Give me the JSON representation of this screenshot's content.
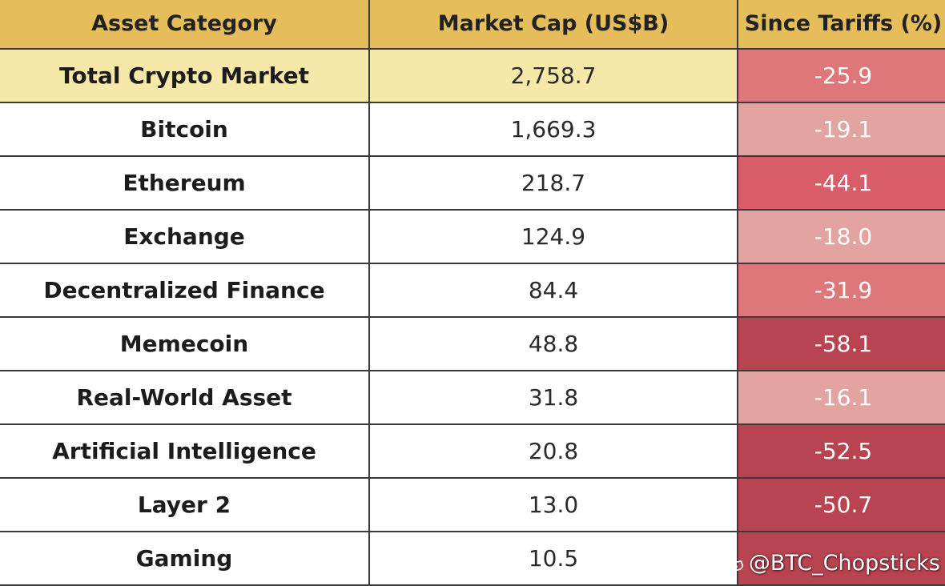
{
  "chart_data": {
    "type": "table",
    "columns": [
      "Asset Category",
      "Market Cap (US$B)",
      "Since Tariffs (%)"
    ],
    "rows": [
      {
        "category": "Total Crypto Market",
        "market_cap": "2,758.7",
        "since_tariffs": "-25.9",
        "value": -25.9
      },
      {
        "category": "Bitcoin",
        "market_cap": "1,669.3",
        "since_tariffs": "-19.1",
        "value": -19.1
      },
      {
        "category": "Ethereum",
        "market_cap": "218.7",
        "since_tariffs": "-44.1",
        "value": -44.1
      },
      {
        "category": "Exchange",
        "market_cap": "124.9",
        "since_tariffs": "-18.0",
        "value": -18.0
      },
      {
        "category": "Decentralized Finance",
        "market_cap": "84.4",
        "since_tariffs": "-31.9",
        "value": -31.9
      },
      {
        "category": "Memecoin",
        "market_cap": "48.8",
        "since_tariffs": "-58.1",
        "value": -58.1
      },
      {
        "category": "Real-World Asset",
        "market_cap": "31.8",
        "since_tariffs": "-16.1",
        "value": -16.1
      },
      {
        "category": "Artificial Intelligence",
        "market_cap": "20.8",
        "since_tariffs": "-52.5",
        "value": -52.5
      },
      {
        "category": "Layer 2",
        "market_cap": "13.0",
        "since_tariffs": "-50.7",
        "value": -50.7
      },
      {
        "category": "Gaming",
        "market_cap": "10.5",
        "since_tariffs": "",
        "value": null
      }
    ]
  },
  "colors": {
    "header_bg": "#e5bd5b",
    "total_row_bg": "#f6e8a9",
    "change_light": "#e3a3a0",
    "change_medium": "#de7779",
    "change_strong": "#d75e68",
    "change_darkest": "#b94451"
  },
  "watermark": {
    "text": "@BTC_Chopsticks",
    "icon": "weibo-watermark-icon"
  }
}
